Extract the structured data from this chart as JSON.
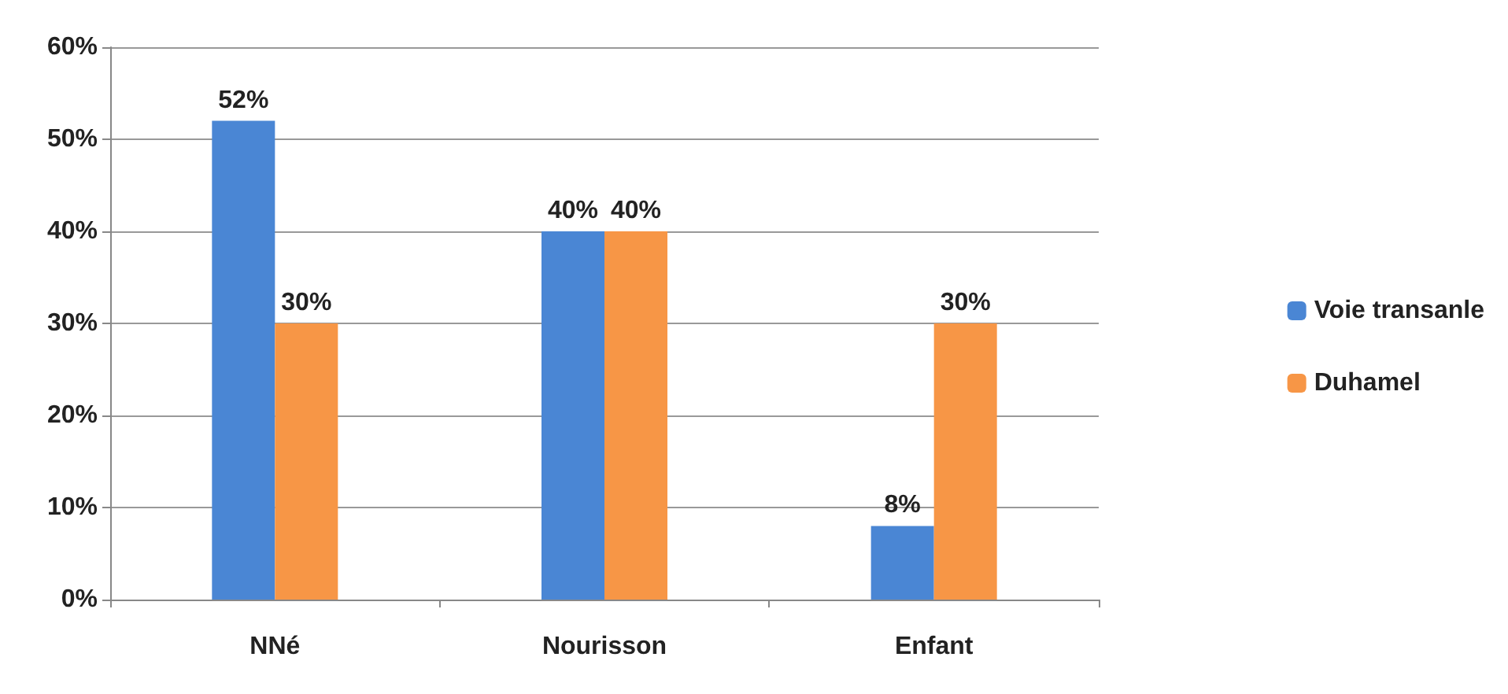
{
  "chart_data": {
    "type": "bar",
    "categories": [
      "NNé",
      "Nourisson",
      "Enfant"
    ],
    "series": [
      {
        "name": "Voie transanle",
        "color": "#4a86d4",
        "values": [
          52,
          40,
          8
        ],
        "value_labels": [
          "52%",
          "40%",
          "8%"
        ]
      },
      {
        "name": "Duhamel",
        "color": "#f79646",
        "values": [
          30,
          40,
          30
        ],
        "value_labels": [
          "30%",
          "40%",
          "30%"
        ]
      }
    ],
    "ylim": [
      0,
      60
    ],
    "yticks": [
      {
        "value": 0,
        "label": "0%"
      },
      {
        "value": 10,
        "label": "10%"
      },
      {
        "value": 20,
        "label": "20%"
      },
      {
        "value": 30,
        "label": "30%"
      },
      {
        "value": 40,
        "label": "40%"
      },
      {
        "value": 50,
        "label": "50%"
      },
      {
        "value": 60,
        "label": "60%"
      }
    ],
    "grid": "y",
    "legend": "right"
  }
}
